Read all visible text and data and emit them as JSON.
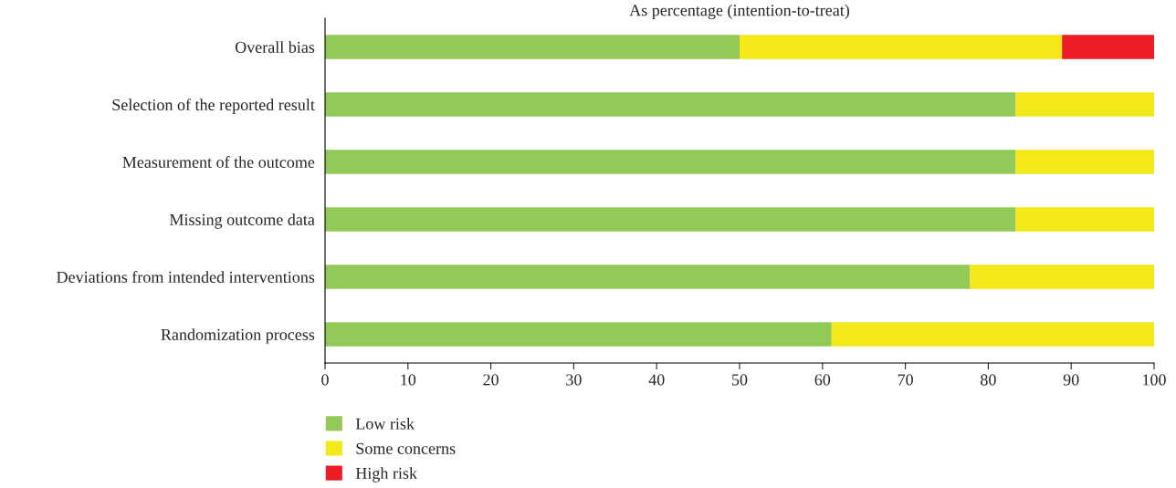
{
  "chart_data": {
    "type": "bar",
    "orientation": "horizontal",
    "stacked": true,
    "title": "As percentage (intention-to-treat)",
    "categories": [
      "Overall bias",
      "Selection of the reported result",
      "Measurement of the outcome",
      "Missing outcome data",
      "Deviations from intended interventions",
      "Randomization process"
    ],
    "series": [
      {
        "name": "Low risk",
        "color": "#92c957",
        "values": [
          50,
          83.3,
          83.3,
          83.3,
          77.8,
          61.1
        ]
      },
      {
        "name": "Some concerns",
        "color": "#f2e81a",
        "values": [
          38.9,
          16.7,
          16.7,
          16.7,
          22.2,
          38.9
        ]
      },
      {
        "name": "High risk",
        "color": "#ed1c24",
        "values": [
          11.1,
          0,
          0,
          0,
          0,
          0
        ]
      }
    ],
    "xlim": [
      0,
      100
    ],
    "xticks": [
      0,
      10,
      20,
      30,
      40,
      50,
      60,
      70,
      80,
      90,
      100
    ],
    "grid": false,
    "legend": "bottom left"
  }
}
